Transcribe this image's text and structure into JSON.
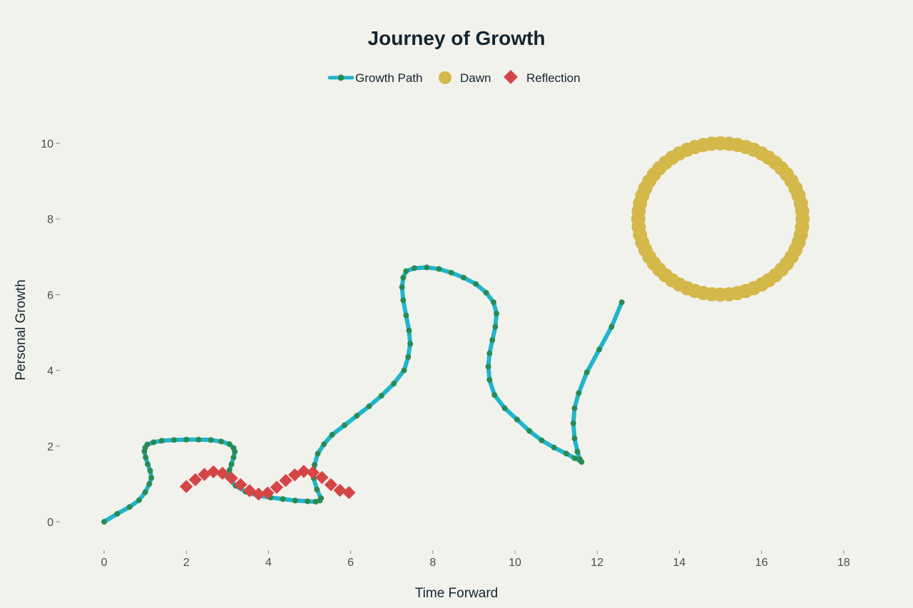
{
  "chart_data": {
    "type": "scatter",
    "title": "Journey of Growth",
    "xlabel": "Time Forward",
    "ylabel": "Personal Growth",
    "xlim": [
      -1,
      19
    ],
    "ylim": [
      -0.5,
      11
    ],
    "xticks": [
      0,
      2,
      4,
      6,
      8,
      10,
      12,
      14,
      16,
      18
    ],
    "yticks": [
      0,
      2,
      4,
      6,
      8,
      10
    ],
    "grid": false,
    "legend_position": "top-center",
    "series": [
      {
        "name": "Growth Path",
        "kind": "line+markers",
        "line_color": "#1fb6cc",
        "marker_color": "#2a8a55",
        "x": [
          0,
          0.32,
          0.62,
          0.85,
          1.0,
          1.1,
          1.15,
          1.12,
          1.06,
          1.01,
          0.98,
          1.0,
          1.05,
          1.2,
          1.4,
          1.7,
          2.0,
          2.3,
          2.6,
          2.85,
          3.05,
          3.15,
          3.18,
          3.15,
          3.1,
          3.05,
          3.0,
          3.2,
          3.45,
          3.75,
          4.05,
          4.35,
          4.65,
          4.95,
          5.15,
          5.25,
          5.28,
          5.18,
          5.1,
          5.12,
          5.2,
          5.35,
          5.55,
          5.85,
          6.15,
          6.45,
          6.75,
          7.05,
          7.3,
          7.4,
          7.45,
          7.42,
          7.35,
          7.28,
          7.25,
          7.28,
          7.35,
          7.55,
          7.85,
          8.15,
          8.45,
          8.75,
          9.05,
          9.3,
          9.48,
          9.55,
          9.52,
          9.45,
          9.38,
          9.35,
          9.38,
          9.5,
          9.75,
          10.05,
          10.35,
          10.65,
          10.95,
          11.25,
          11.45,
          11.6,
          11.62,
          11.58,
          11.52,
          11.45,
          11.42,
          11.45,
          11.55,
          11.75,
          12.05,
          12.35,
          12.6
        ],
        "y": [
          0,
          0.21,
          0.39,
          0.57,
          0.78,
          1.0,
          1.16,
          1.35,
          1.52,
          1.7,
          1.86,
          1.96,
          2.04,
          2.1,
          2.14,
          2.16,
          2.17,
          2.17,
          2.16,
          2.12,
          2.05,
          1.95,
          1.85,
          1.7,
          1.52,
          1.36,
          1.2,
          0.95,
          0.79,
          0.69,
          0.64,
          0.6,
          0.56,
          0.54,
          0.53,
          0.56,
          0.62,
          0.85,
          1.15,
          1.5,
          1.8,
          2.05,
          2.3,
          2.55,
          2.8,
          3.05,
          3.33,
          3.65,
          4.0,
          4.35,
          4.7,
          5.05,
          5.45,
          5.85,
          6.2,
          6.45,
          6.62,
          6.7,
          6.72,
          6.68,
          6.58,
          6.45,
          6.28,
          6.05,
          5.8,
          5.5,
          5.15,
          4.8,
          4.45,
          4.1,
          3.75,
          3.35,
          3.0,
          2.7,
          2.4,
          2.15,
          1.96,
          1.8,
          1.68,
          1.6,
          1.58,
          1.65,
          1.85,
          2.2,
          2.6,
          3.0,
          3.4,
          3.95,
          4.55,
          5.15,
          5.8
        ]
      },
      {
        "name": "Dawn",
        "kind": "markers",
        "marker": "circle",
        "color": "#d4b84a",
        "shape": "circle",
        "center": [
          15,
          8
        ],
        "radius": 2,
        "count": 60
      },
      {
        "name": "Reflection",
        "kind": "markers",
        "marker": "diamond",
        "color": "#d64545",
        "x": [
          2.0,
          2.22,
          2.44,
          2.66,
          2.88,
          3.1,
          3.32,
          3.54,
          3.76,
          3.98,
          4.2,
          4.42,
          4.64,
          4.86,
          5.08,
          5.3,
          5.52,
          5.74,
          5.96
        ],
        "y": [
          0.93,
          1.11,
          1.25,
          1.32,
          1.28,
          1.15,
          0.98,
          0.82,
          0.73,
          0.76,
          0.91,
          1.09,
          1.24,
          1.33,
          1.3,
          1.17,
          0.98,
          0.83,
          0.77
        ]
      }
    ]
  }
}
